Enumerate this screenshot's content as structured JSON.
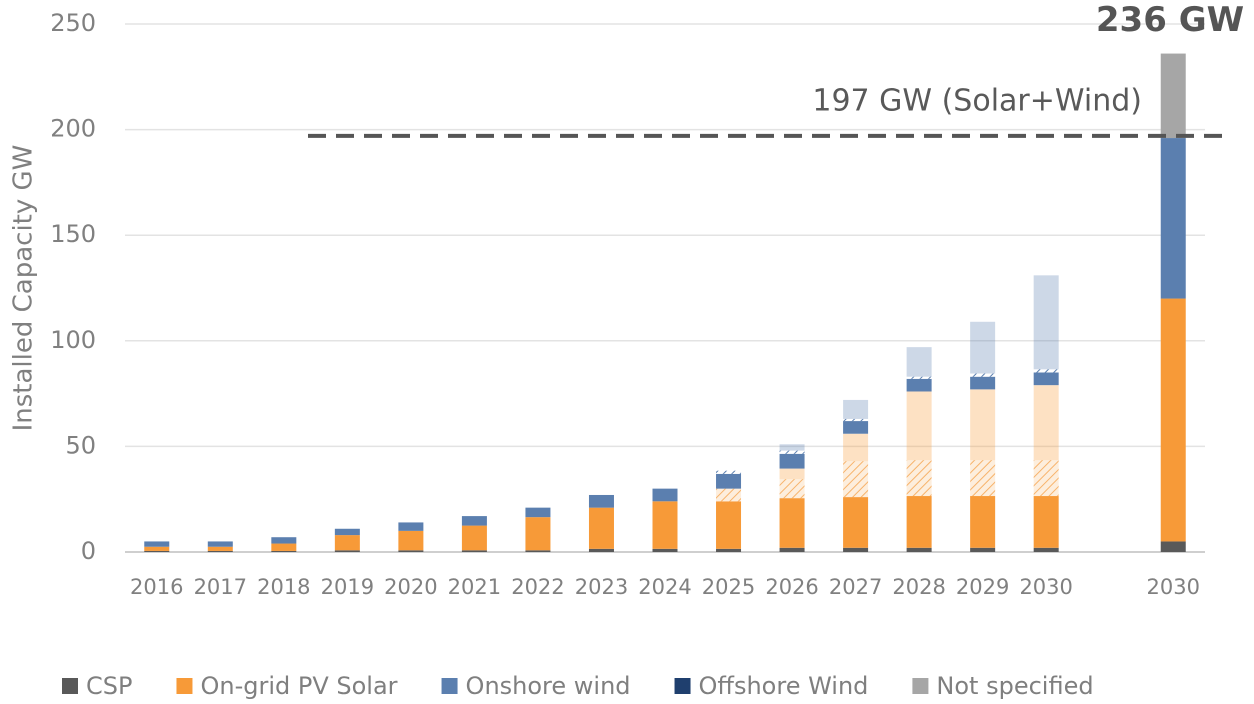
{
  "chart_data": {
    "type": "bar",
    "stacked": true,
    "y_label": "Installed Capacity GW",
    "categories": [
      "2016",
      "2017",
      "2018",
      "2019",
      "2020",
      "2021",
      "2022",
      "2023",
      "2024",
      "2025",
      "2026",
      "2027",
      "2028",
      "2029",
      "2030",
      null,
      "2030"
    ],
    "ylim": [
      0,
      250
    ],
    "yticks": [
      0,
      50,
      100,
      150,
      200,
      250
    ],
    "grid": true,
    "legend": "bottom",
    "series": [
      {
        "name": "CSP",
        "color": "#595959",
        "style": "solid",
        "values": [
          0.5,
          0.5,
          0.5,
          0.8,
          0.8,
          0.8,
          0.8,
          1.5,
          1.5,
          1.5,
          2,
          2,
          2,
          2,
          2,
          null,
          5
        ]
      },
      {
        "name": "On-grid PV Solar",
        "color": "#f79a38",
        "style": "solid",
        "values": [
          2,
          2,
          3.5,
          7.2,
          9.2,
          11.7,
          15.7,
          19.5,
          22.5,
          22.5,
          23.5,
          24,
          24.5,
          24.5,
          24.5,
          null,
          115
        ]
      },
      {
        "name": "On-grid PV Solar",
        "color": "#f79a38",
        "style": "hatched",
        "values": [
          0,
          0,
          0,
          0,
          0,
          0,
          0,
          0,
          0,
          6,
          9,
          17,
          17,
          17,
          17,
          null,
          0
        ]
      },
      {
        "name": "On-grid PV Solar",
        "color": "#f79a38",
        "style": "faded",
        "values": [
          0,
          0,
          0,
          0,
          0,
          0,
          0,
          0,
          0,
          0,
          5,
          13,
          32.5,
          33.5,
          35.5,
          null,
          0
        ]
      },
      {
        "name": "Onshore wind",
        "color": "#5b7faf",
        "style": "solid",
        "values": [
          2.5,
          2.5,
          3,
          3,
          4,
          4.5,
          4.5,
          6,
          6,
          7,
          7,
          6,
          6,
          6,
          6,
          null,
          76
        ]
      },
      {
        "name": "Onshore wind",
        "color": "#5b7faf",
        "style": "hatched",
        "values": [
          0,
          0,
          0,
          0,
          0,
          0,
          0,
          0,
          0,
          1.5,
          1.5,
          1,
          1,
          1.5,
          1.5,
          null,
          0
        ]
      },
      {
        "name": "Onshore wind",
        "color": "#5b7faf",
        "style": "faded",
        "values": [
          0,
          0,
          0,
          0,
          0,
          0,
          0,
          0,
          0,
          0,
          3,
          9,
          14,
          24.5,
          44.5,
          null,
          0
        ]
      },
      {
        "name": "Offshore Wind",
        "color": "#1f3f6e",
        "style": "solid",
        "values": [
          0,
          0,
          0,
          0,
          0,
          0,
          0,
          0,
          0,
          0,
          0,
          0,
          0,
          0,
          0,
          null,
          0
        ]
      },
      {
        "name": "Not specified",
        "color": "#a6a6a6",
        "style": "solid",
        "values": [
          0,
          0,
          0,
          0,
          0,
          0,
          0,
          0,
          0,
          0,
          0,
          0,
          0,
          0,
          0,
          null,
          40
        ]
      }
    ],
    "target_line": {
      "value": 197,
      "label": "197 GW (Solar+Wind)",
      "color": "#555555"
    },
    "total_label": {
      "value": 236,
      "label": "236 GW"
    }
  }
}
